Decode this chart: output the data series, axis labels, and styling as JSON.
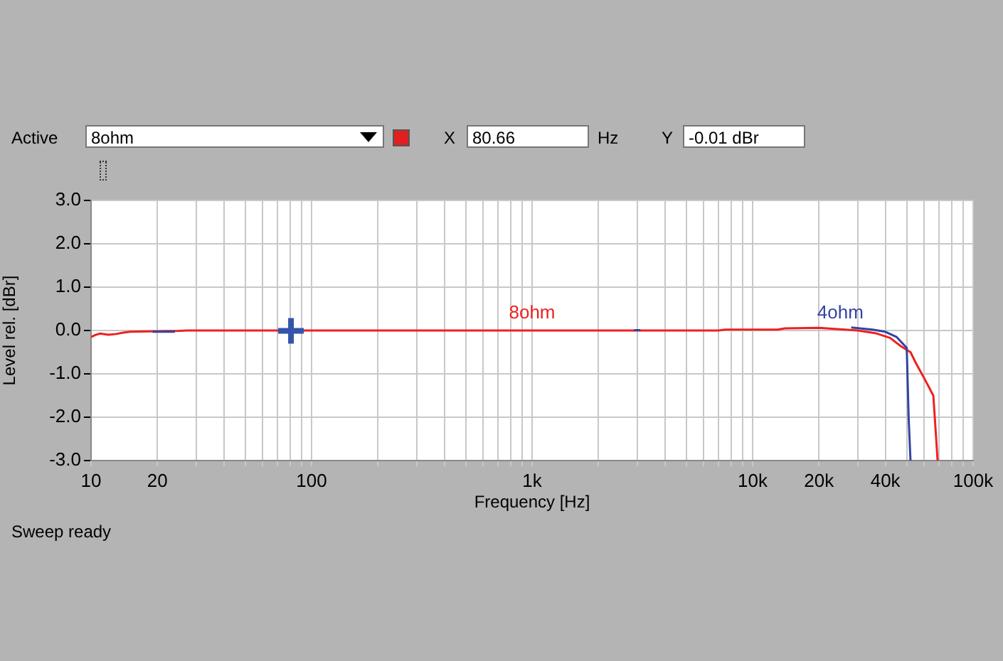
{
  "chart_data": {
    "type": "line",
    "xlabel": "Frequency [Hz]",
    "ylabel": "Level rel. [dBr]",
    "annotations": [
      "Active",
      "8ohm",
      "X",
      "80.66",
      "Hz",
      "Y",
      "-0.01 dBr",
      "Sweep ready"
    ],
    "log": "x",
    "grid": true,
    "legend": false,
    "marker": "none",
    "line_style": "solid",
    "xlim": [
      10,
      100000
    ],
    "ylim": [
      -3,
      3
    ],
    "xticks": [
      {
        "value": 10,
        "label": "10"
      },
      {
        "value": 20,
        "label": "20"
      },
      {
        "value": 30,
        "label": null
      },
      {
        "value": 40,
        "label": null
      },
      {
        "value": 50,
        "label": null
      },
      {
        "value": 60,
        "label": null
      },
      {
        "value": 70,
        "label": null
      },
      {
        "value": 80,
        "label": null
      },
      {
        "value": 90,
        "label": null
      },
      {
        "value": 100,
        "label": "100"
      },
      {
        "value": 200,
        "label": null
      },
      {
        "value": 300,
        "label": null
      },
      {
        "value": 400,
        "label": null
      },
      {
        "value": 500,
        "label": null
      },
      {
        "value": 600,
        "label": null
      },
      {
        "value": 700,
        "label": null
      },
      {
        "value": 800,
        "label": null
      },
      {
        "value": 900,
        "label": null
      },
      {
        "value": 1000,
        "label": "1k"
      },
      {
        "value": 2000,
        "label": null
      },
      {
        "value": 3000,
        "label": null
      },
      {
        "value": 4000,
        "label": null
      },
      {
        "value": 5000,
        "label": null
      },
      {
        "value": 6000,
        "label": null
      },
      {
        "value": 7000,
        "label": null
      },
      {
        "value": 8000,
        "label": null
      },
      {
        "value": 9000,
        "label": null
      },
      {
        "value": 10000,
        "label": "10k"
      },
      {
        "value": 20000,
        "label": "20k"
      },
      {
        "value": 30000,
        "label": null
      },
      {
        "value": 40000,
        "label": "40k"
      },
      {
        "value": 50000,
        "label": null
      },
      {
        "value": 60000,
        "label": null
      },
      {
        "value": 70000,
        "label": null
      },
      {
        "value": 80000,
        "label": null
      },
      {
        "value": 90000,
        "label": null
      },
      {
        "value": 100000,
        "label": "100k"
      }
    ],
    "yticks": [
      {
        "value": -3,
        "label": "-3.0"
      },
      {
        "value": -2,
        "label": "-2.0"
      },
      {
        "value": -1,
        "label": "-1.0"
      },
      {
        "value": 0,
        "label": "0.0"
      },
      {
        "value": 1,
        "label": "1.0"
      },
      {
        "value": 2,
        "label": "2.0"
      },
      {
        "value": 3,
        "label": "3.0"
      }
    ],
    "series": [
      {
        "name": "4ohm",
        "color": "#3344a0",
        "x": [
          19,
          24,
          25,
          2900,
          3100,
          3200,
          28000,
          35000,
          40000,
          45000,
          50000,
          51000,
          52000
        ],
        "values": [
          -0.03,
          -0.03,
          null,
          0.01,
          0.01,
          null,
          0.07,
          0.02,
          -0.03,
          -0.15,
          -0.4,
          -2.0,
          -3.0
        ]
      },
      {
        "name": "8ohm",
        "color": "#ee2020",
        "x": [
          10,
          10.5,
          11,
          12,
          13,
          14,
          15,
          25,
          27,
          1000,
          7000,
          7500,
          13000,
          14000,
          20000,
          30000,
          36000,
          42000,
          47000,
          52000,
          55000,
          60000,
          66000,
          68000,
          69000
        ],
        "values": [
          -0.15,
          -0.1,
          -0.07,
          -0.1,
          -0.08,
          -0.05,
          -0.03,
          -0.01,
          0,
          0,
          0,
          0.02,
          0.02,
          0.05,
          0.06,
          0.0,
          -0.06,
          -0.17,
          -0.36,
          -0.5,
          -0.75,
          -1.1,
          -1.5,
          -2.5,
          -3.0
        ]
      },
      {
        "type": "scatter",
        "color": "#3355aa",
        "marker": "cross",
        "x": [
          80.66
        ],
        "values": [
          -0.01
        ]
      }
    ]
  }
}
